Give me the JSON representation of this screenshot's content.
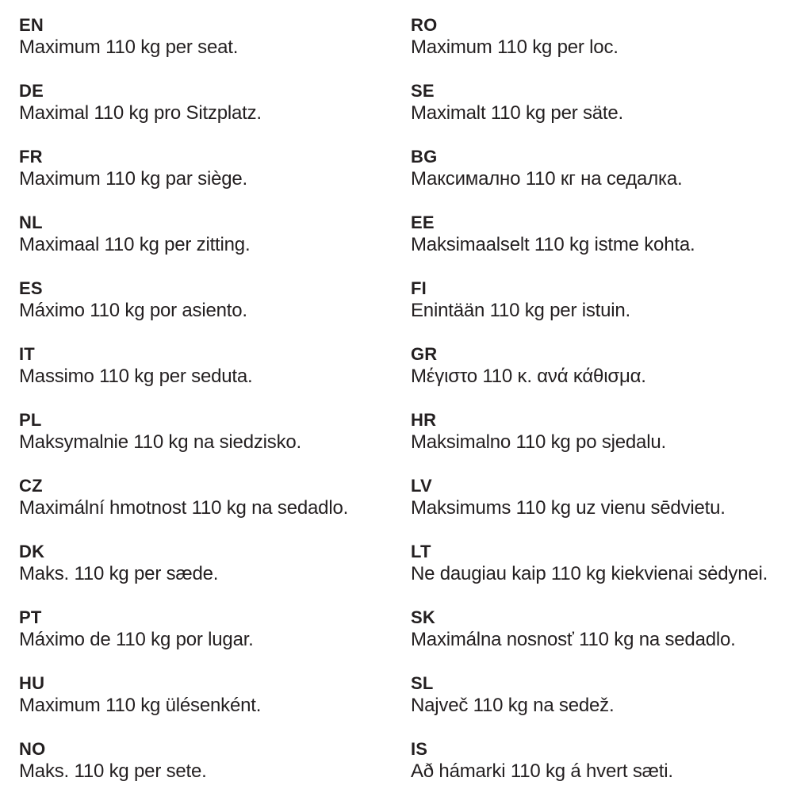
{
  "page": {
    "background": "#ffffff",
    "text_color": "#231f20",
    "description": "Multilingual seat weight limit instruction sheet"
  },
  "entries": [
    {
      "code": "EN",
      "text": "Maximum 110 kg per seat."
    },
    {
      "code": "DE",
      "text": "Maximal 110 kg pro Sitzplatz."
    },
    {
      "code": "FR",
      "text": "Maximum 110 kg par siège."
    },
    {
      "code": "NL",
      "text": "Maximaal 110 kg per zitting."
    },
    {
      "code": "ES",
      "text": "Máximo 110 kg por asiento."
    },
    {
      "code": "IT",
      "text": "Massimo 110 kg per seduta."
    },
    {
      "code": "PL",
      "text": "Maksymalnie 110 kg na siedzisko."
    },
    {
      "code": "CZ",
      "text": "Maximální hmotnost 110 kg na sedadlo."
    },
    {
      "code": "DK",
      "text": "Maks. 110 kg per sæde."
    },
    {
      "code": "PT",
      "text": "Máximo de 110 kg por lugar."
    },
    {
      "code": "HU",
      "text": "Maximum 110 kg ülésenként."
    },
    {
      "code": "NO",
      "text": "Maks. 110 kg per sete."
    },
    {
      "code": "RO",
      "text": "Maximum 110 kg per loc."
    },
    {
      "code": "SE",
      "text": "Maximalt 110 kg per säte."
    },
    {
      "code": "BG",
      "text": "Максимално 110 кг на седалка."
    },
    {
      "code": "EE",
      "text": "Maksimaalselt 110 kg istme kohta."
    },
    {
      "code": "FI",
      "text": "Enintään 110 kg per istuin."
    },
    {
      "code": "GR",
      "text": "Μέγιστο 110 κ. ανά κάθισμα."
    },
    {
      "code": "HR",
      "text": "Maksimalno 110 kg po sjedalu."
    },
    {
      "code": "LV",
      "text": "Maksimums 110 kg uz vienu sēdvietu."
    },
    {
      "code": "LT",
      "text": "Ne daugiau kaip 110 kg kiekvienai sėdynei."
    },
    {
      "code": "SK",
      "text": "Maximálna nosnosť 110 kg na sedadlo."
    },
    {
      "code": "SL",
      "text": "Največ 110 kg na sedež."
    },
    {
      "code": "IS",
      "text": "Að hámarki 110 kg á hvert sæti."
    }
  ]
}
